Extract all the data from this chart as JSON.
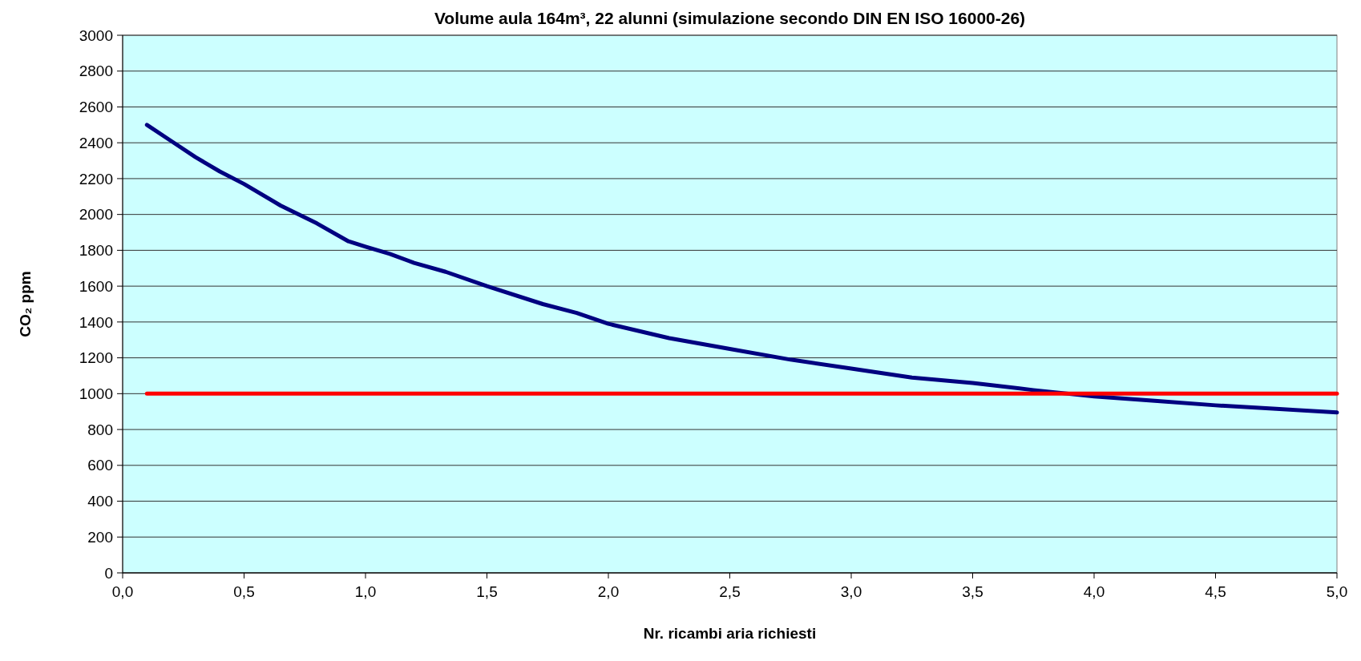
{
  "chart_data": {
    "type": "line",
    "title": "Volume aula 164m³, 22 alunni (simulazione secondo DIN EN ISO 16000-26)",
    "xlabel": "Nr. ricambi aria richiesti",
    "ylabel": "CO₂ ppm",
    "xlim": [
      0,
      5
    ],
    "ylim": [
      0,
      3000
    ],
    "xticks": [
      {
        "value": 0,
        "label": "0,0"
      },
      {
        "value": 0.5,
        "label": "0,5"
      },
      {
        "value": 1,
        "label": "1,0"
      },
      {
        "value": 1.5,
        "label": "1,5"
      },
      {
        "value": 2,
        "label": "2,0"
      },
      {
        "value": 2.5,
        "label": "2,5"
      },
      {
        "value": 3,
        "label": "3,0"
      },
      {
        "value": 3.5,
        "label": "3,5"
      },
      {
        "value": 4,
        "label": "4,0"
      },
      {
        "value": 4.5,
        "label": "4,5"
      },
      {
        "value": 5,
        "label": "5,0"
      }
    ],
    "yticks": [
      0,
      200,
      400,
      600,
      800,
      1000,
      1200,
      1400,
      1600,
      1800,
      2000,
      2200,
      2400,
      2600,
      2800,
      3000
    ],
    "grid": "y",
    "marker": "none",
    "line_style": "solid",
    "series": [
      {
        "color": "#000080",
        "x": [
          0.1,
          0.2,
          0.3,
          0.4,
          0.5,
          0.65,
          0.8,
          0.93,
          1.0,
          1.1,
          1.2,
          1.33,
          1.5,
          1.73,
          1.87,
          2.0,
          2.25,
          2.5,
          2.75,
          3.0,
          3.25,
          3.5,
          3.75,
          4.0,
          4.25,
          4.5,
          4.75,
          5.0
        ],
        "values": [
          2500,
          2410,
          2320,
          2240,
          2170,
          2050,
          1950,
          1850,
          1820,
          1780,
          1730,
          1680,
          1600,
          1500,
          1450,
          1390,
          1310,
          1250,
          1190,
          1140,
          1090,
          1060,
          1020,
          985,
          960,
          935,
          915,
          895
        ]
      },
      {
        "color": "#ff0000",
        "x": [
          0.1,
          5.0
        ],
        "values": [
          1000,
          1000
        ]
      }
    ]
  }
}
